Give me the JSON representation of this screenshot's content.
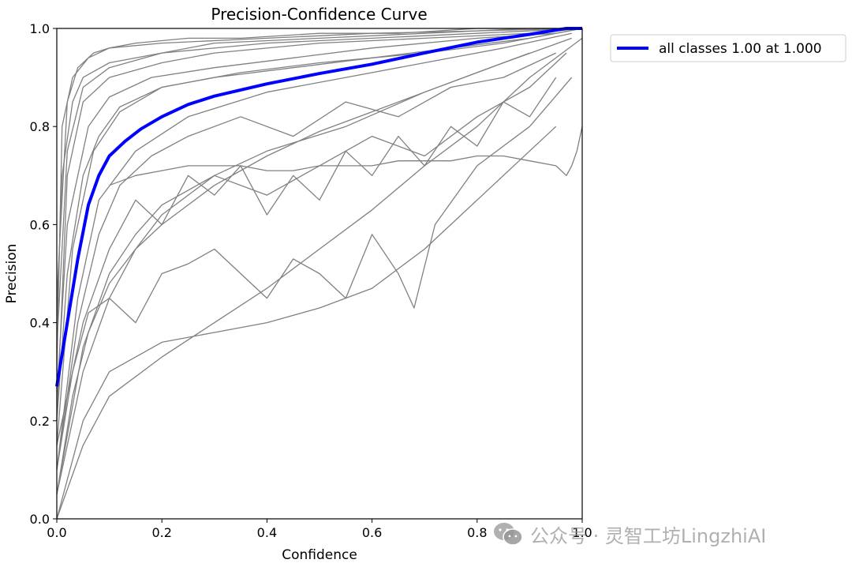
{
  "chart_data": {
    "type": "line",
    "title": "Precision-Confidence Curve",
    "xlabel": "Confidence",
    "ylabel": "Precision",
    "xlim": [
      0.0,
      1.0
    ],
    "ylim": [
      0.0,
      1.0
    ],
    "xticks": [
      "0.0",
      "0.2",
      "0.4",
      "0.6",
      "0.8",
      "1.0"
    ],
    "yticks": [
      "0.0",
      "0.2",
      "0.4",
      "0.6",
      "0.8",
      "1.0"
    ],
    "grid": false,
    "legend": {
      "placement": "outside-upper-right",
      "entries": [
        "all classes 1.00 at 1.000"
      ]
    },
    "colors": {
      "class_curves": "#808080",
      "all_classes": "#0000ff"
    },
    "series": [
      {
        "name": "all classes 1.00 at 1.000",
        "highlight": true,
        "x": [
          0.0,
          0.02,
          0.04,
          0.06,
          0.08,
          0.1,
          0.13,
          0.16,
          0.2,
          0.25,
          0.3,
          0.4,
          0.5,
          0.6,
          0.7,
          0.8,
          0.9,
          0.97,
          1.0
        ],
        "y": [
          0.27,
          0.4,
          0.53,
          0.64,
          0.7,
          0.74,
          0.77,
          0.795,
          0.82,
          0.845,
          0.862,
          0.887,
          0.908,
          0.927,
          0.95,
          0.972,
          0.988,
          1.0,
          1.0
        ]
      },
      {
        "name": "",
        "x": [
          0.0,
          0.01,
          0.03,
          0.06,
          0.1,
          0.2,
          0.4,
          0.6,
          0.8,
          1.0
        ],
        "y": [
          0.3,
          0.8,
          0.9,
          0.94,
          0.96,
          0.97,
          0.98,
          0.99,
          0.995,
          1.0
        ]
      },
      {
        "name": "",
        "x": [
          0.0,
          0.02,
          0.05,
          0.1,
          0.2,
          0.3,
          0.5,
          0.7,
          0.9,
          1.0
        ],
        "y": [
          0.2,
          0.7,
          0.85,
          0.9,
          0.93,
          0.95,
          0.97,
          0.98,
          0.99,
          1.0
        ]
      },
      {
        "name": "",
        "x": [
          0.0,
          0.03,
          0.07,
          0.12,
          0.2,
          0.35,
          0.5,
          0.7,
          0.85,
          1.0
        ],
        "y": [
          0.15,
          0.55,
          0.75,
          0.83,
          0.88,
          0.91,
          0.93,
          0.95,
          0.97,
          1.0
        ]
      },
      {
        "name": "",
        "x": [
          0.0,
          0.02,
          0.06,
          0.1,
          0.18,
          0.3,
          0.45,
          0.6,
          0.8,
          0.95
        ],
        "y": [
          0.25,
          0.6,
          0.8,
          0.86,
          0.9,
          0.92,
          0.94,
          0.96,
          0.98,
          0.99
        ]
      },
      {
        "name": "",
        "x": [
          0.0,
          0.04,
          0.08,
          0.15,
          0.25,
          0.4,
          0.55,
          0.7,
          0.85,
          0.98
        ],
        "y": [
          0.1,
          0.45,
          0.65,
          0.75,
          0.82,
          0.87,
          0.9,
          0.93,
          0.96,
          0.99
        ]
      },
      {
        "name": "",
        "x": [
          0.0,
          0.05,
          0.1,
          0.15,
          0.2,
          0.3,
          0.4,
          0.55,
          0.7,
          0.85,
          0.98
        ],
        "y": [
          0.05,
          0.3,
          0.45,
          0.55,
          0.62,
          0.7,
          0.75,
          0.8,
          0.87,
          0.93,
          0.98
        ]
      },
      {
        "name": "",
        "x": [
          0.0,
          0.05,
          0.1,
          0.2,
          0.3,
          0.4,
          0.5,
          0.6,
          0.7,
          0.8,
          0.95
        ],
        "y": [
          0.0,
          0.2,
          0.3,
          0.36,
          0.38,
          0.4,
          0.43,
          0.47,
          0.55,
          0.65,
          0.8
        ]
      },
      {
        "name": "",
        "x": [
          0.0,
          0.03,
          0.06,
          0.1,
          0.15,
          0.2,
          0.25,
          0.3,
          0.35,
          0.4,
          0.45,
          0.5,
          0.55,
          0.6,
          0.65,
          0.68,
          0.72,
          0.8,
          0.9,
          0.98
        ],
        "y": [
          0.1,
          0.3,
          0.42,
          0.45,
          0.4,
          0.5,
          0.52,
          0.55,
          0.5,
          0.45,
          0.53,
          0.5,
          0.45,
          0.58,
          0.5,
          0.43,
          0.6,
          0.72,
          0.8,
          0.9
        ]
      },
      {
        "name": "",
        "x": [
          0.0,
          0.05,
          0.1,
          0.15,
          0.2,
          0.25,
          0.3,
          0.35,
          0.4,
          0.45,
          0.5,
          0.55,
          0.6,
          0.65,
          0.7,
          0.75,
          0.8,
          0.85,
          0.9,
          0.95
        ],
        "y": [
          0.15,
          0.4,
          0.55,
          0.65,
          0.6,
          0.7,
          0.66,
          0.72,
          0.62,
          0.7,
          0.65,
          0.75,
          0.7,
          0.78,
          0.72,
          0.8,
          0.76,
          0.85,
          0.82,
          0.9
        ]
      },
      {
        "name": "",
        "x": [
          0.0,
          0.02,
          0.05,
          0.1,
          0.2,
          0.3,
          0.5,
          0.7,
          0.9,
          1.0
        ],
        "y": [
          0.35,
          0.75,
          0.88,
          0.92,
          0.95,
          0.97,
          0.98,
          0.99,
          1.0,
          1.0
        ]
      },
      {
        "name": "",
        "x": [
          0.0,
          0.01,
          0.03,
          0.05,
          0.1,
          0.2,
          0.4,
          0.6,
          0.8,
          1.0
        ],
        "y": [
          0.4,
          0.7,
          0.85,
          0.9,
          0.93,
          0.95,
          0.97,
          0.98,
          0.99,
          1.0
        ]
      },
      {
        "name": "",
        "x": [
          0.0,
          0.04,
          0.08,
          0.12,
          0.18,
          0.25,
          0.35,
          0.45,
          0.55,
          0.65,
          0.75,
          0.85,
          0.95
        ],
        "y": [
          0.1,
          0.4,
          0.58,
          0.68,
          0.74,
          0.78,
          0.82,
          0.78,
          0.85,
          0.82,
          0.88,
          0.9,
          0.95
        ]
      },
      {
        "name": "",
        "x": [
          0.0,
          0.05,
          0.1,
          0.15,
          0.2,
          0.3,
          0.4,
          0.5,
          0.6,
          0.7,
          0.8,
          0.9,
          0.97
        ],
        "y": [
          0.05,
          0.35,
          0.5,
          0.58,
          0.64,
          0.7,
          0.66,
          0.72,
          0.78,
          0.74,
          0.82,
          0.88,
          0.95
        ]
      },
      {
        "name": "",
        "x": [
          0.1,
          0.15,
          0.2,
          0.25,
          0.3,
          0.35,
          0.4,
          0.45,
          0.5,
          0.55,
          0.6,
          0.65,
          0.7,
          0.75,
          0.8,
          0.85,
          0.9,
          0.95,
          0.97,
          0.98,
          0.99,
          1.0
        ],
        "y": [
          0.68,
          0.7,
          0.71,
          0.72,
          0.72,
          0.72,
          0.71,
          0.71,
          0.72,
          0.72,
          0.72,
          0.73,
          0.73,
          0.73,
          0.74,
          0.74,
          0.73,
          0.72,
          0.7,
          0.72,
          0.75,
          0.8
        ]
      },
      {
        "name": "",
        "x": [
          0.0,
          0.02,
          0.05,
          0.08,
          0.12,
          0.2,
          0.3,
          0.45,
          0.6,
          0.75,
          0.9,
          1.0
        ],
        "y": [
          0.2,
          0.5,
          0.7,
          0.78,
          0.84,
          0.88,
          0.9,
          0.92,
          0.94,
          0.96,
          0.98,
          1.0
        ]
      },
      {
        "name": "",
        "x": [
          0.0,
          0.03,
          0.06,
          0.1,
          0.15,
          0.2,
          0.3,
          0.4,
          0.5,
          0.6,
          0.7,
          0.8,
          0.9
        ],
        "y": [
          0.05,
          0.25,
          0.38,
          0.48,
          0.55,
          0.6,
          0.68,
          0.74,
          0.79,
          0.83,
          0.87,
          0.91,
          0.95
        ]
      },
      {
        "name": "",
        "x": [
          0.0,
          0.02,
          0.04,
          0.07,
          0.1,
          0.15,
          0.25,
          0.35,
          0.5,
          0.65,
          0.8,
          0.95
        ],
        "y": [
          0.45,
          0.85,
          0.92,
          0.95,
          0.96,
          0.97,
          0.98,
          0.98,
          0.99,
          0.99,
          1.0,
          1.0
        ]
      },
      {
        "name": "",
        "x": [
          0.0,
          0.05,
          0.1,
          0.2,
          0.3,
          0.4,
          0.5,
          0.6,
          0.7,
          0.8,
          0.9,
          1.0
        ],
        "y": [
          0.0,
          0.15,
          0.25,
          0.33,
          0.4,
          0.47,
          0.55,
          0.63,
          0.72,
          0.8,
          0.9,
          0.98
        ]
      }
    ]
  },
  "watermark": {
    "icon": "wechat-icon",
    "text": "公众号 · 灵智工坊LingzhiAI"
  }
}
